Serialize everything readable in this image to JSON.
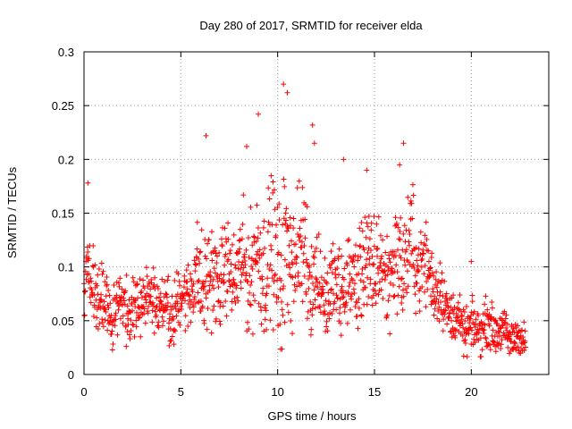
{
  "chart_data": {
    "type": "scatter",
    "title": "Day 280 of 2017, SRMTID for receiver elda",
    "xlabel": "GPS time / hours",
    "ylabel": "SRMTID / TECUs",
    "xlim": [
      0,
      24
    ],
    "ylim": [
      0,
      0.3
    ],
    "xticks": [
      0,
      5,
      10,
      15,
      20
    ],
    "xtick_labels": [
      "0",
      "5",
      "10",
      "15",
      "20"
    ],
    "yticks": [
      0,
      0.05,
      0.1,
      0.15,
      0.2,
      0.25,
      0.3
    ],
    "ytick_labels": [
      "0",
      "0.05",
      "0.1",
      "0.15",
      "0.2",
      "0.25",
      "0.3"
    ],
    "grid": true,
    "marker": "plus",
    "color": "#ff0000",
    "trend": {
      "x": [
        0,
        0.5,
        1,
        1.5,
        2,
        2.5,
        3,
        3.5,
        4,
        4.5,
        5,
        5.5,
        6,
        6.5,
        7,
        7.5,
        8,
        8.5,
        9,
        9.5,
        10,
        10.5,
        11,
        11.5,
        12,
        12.5,
        13,
        13.5,
        14,
        14.5,
        15,
        15.5,
        16,
        16.5,
        17,
        17.5,
        18,
        18.5,
        19,
        19.5,
        20,
        20.5,
        21,
        21.5,
        22,
        22.5,
        22.8
      ],
      "y": [
        0.085,
        0.08,
        0.065,
        0.058,
        0.06,
        0.062,
        0.07,
        0.07,
        0.062,
        0.055,
        0.072,
        0.08,
        0.09,
        0.085,
        0.09,
        0.095,
        0.095,
        0.1,
        0.105,
        0.11,
        0.1,
        0.11,
        0.115,
        0.11,
        0.085,
        0.075,
        0.078,
        0.08,
        0.09,
        0.1,
        0.1,
        0.095,
        0.1,
        0.11,
        0.115,
        0.1,
        0.09,
        0.07,
        0.055,
        0.045,
        0.04,
        0.045,
        0.045,
        0.04,
        0.035,
        0.033,
        0.032
      ],
      "spread": [
        0.035,
        0.03,
        0.025,
        0.025,
        0.025,
        0.025,
        0.025,
        0.025,
        0.025,
        0.025,
        0.028,
        0.03,
        0.045,
        0.04,
        0.035,
        0.035,
        0.04,
        0.045,
        0.05,
        0.055,
        0.065,
        0.06,
        0.055,
        0.05,
        0.04,
        0.03,
        0.035,
        0.035,
        0.04,
        0.045,
        0.045,
        0.04,
        0.04,
        0.045,
        0.04,
        0.035,
        0.03,
        0.025,
        0.02,
        0.018,
        0.018,
        0.018,
        0.018,
        0.015,
        0.015,
        0.015,
        0.015
      ]
    },
    "points_estimated": 1400,
    "notable_peaks": [
      {
        "x": 0.2,
        "y": 0.178
      },
      {
        "x": 6.3,
        "y": 0.222
      },
      {
        "x": 8.4,
        "y": 0.212
      },
      {
        "x": 9.0,
        "y": 0.242
      },
      {
        "x": 10.3,
        "y": 0.27
      },
      {
        "x": 10.5,
        "y": 0.262
      },
      {
        "x": 11.8,
        "y": 0.232
      },
      {
        "x": 11.9,
        "y": 0.215
      },
      {
        "x": 13.4,
        "y": 0.2
      },
      {
        "x": 14.6,
        "y": 0.19
      },
      {
        "x": 16.5,
        "y": 0.215
      },
      {
        "x": 16.3,
        "y": 0.195
      },
      {
        "x": 20.0,
        "y": 0.105
      }
    ]
  }
}
